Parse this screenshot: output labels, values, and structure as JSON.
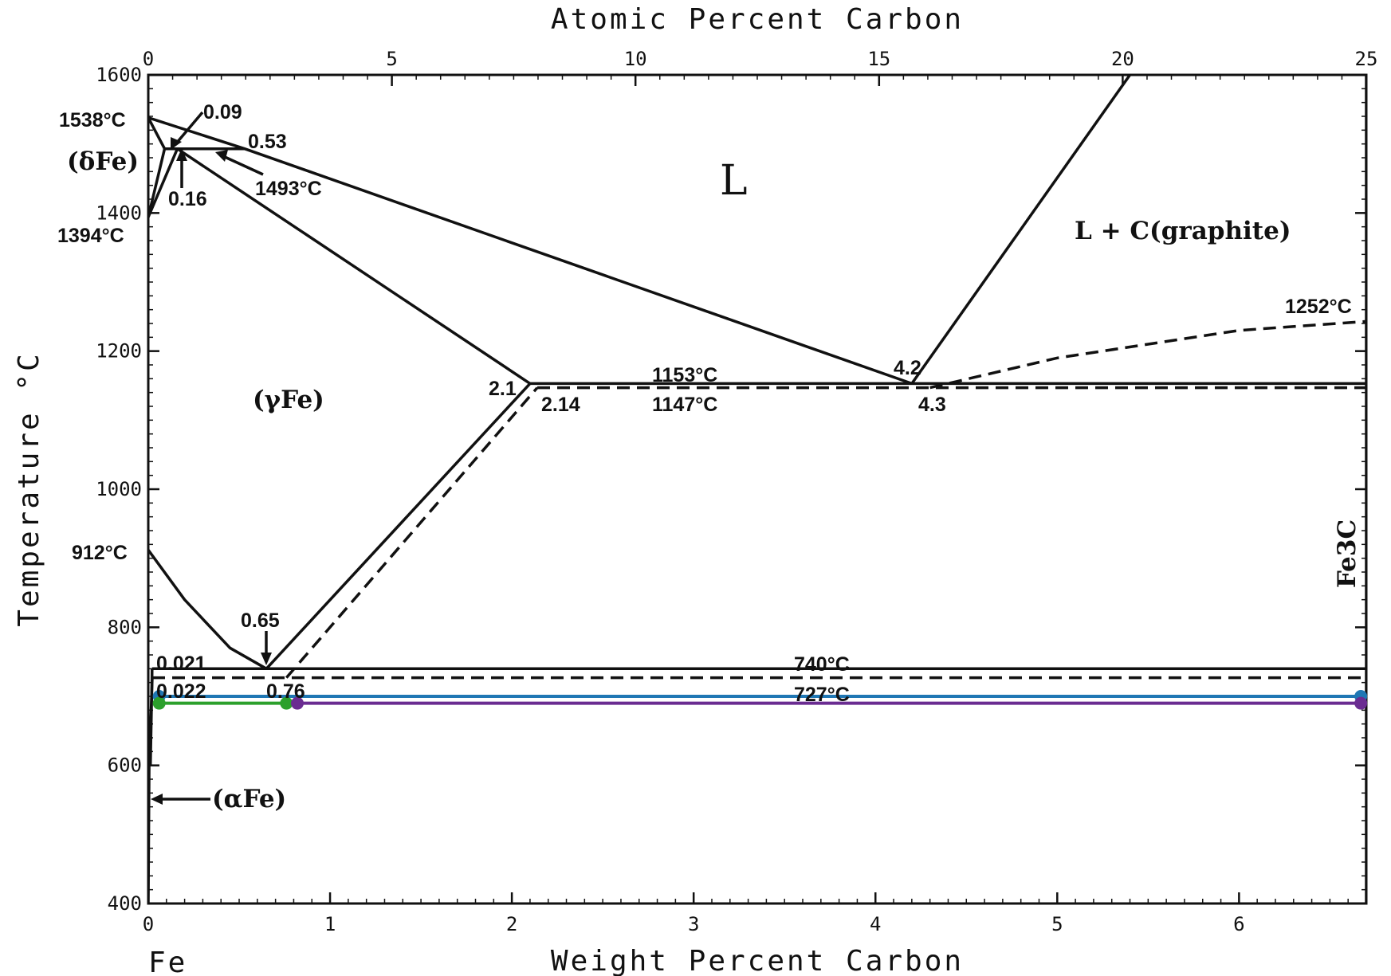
{
  "chart_data": {
    "type": "line",
    "title": "",
    "xlabel": "Weight Percent Carbon",
    "x2label": "Atomic Percent Carbon",
    "ylabel": "Temperature °C",
    "xlim": [
      0,
      6.7
    ],
    "ylim": [
      400,
      1600
    ],
    "x2lim": [
      0,
      25
    ],
    "x_ticks": [
      0,
      1,
      2,
      3,
      4,
      5,
      6
    ],
    "x2_ticks": [
      0,
      5,
      10,
      15,
      20,
      25
    ],
    "y_ticks": [
      400,
      600,
      800,
      1000,
      1200,
      1400,
      1600
    ],
    "fe_label": "Fe",
    "fe3c_label": "Fe3C",
    "regions": {
      "liquid": "L",
      "liquid_graphite": "L + C(graphite)",
      "gamma": "(γFe)",
      "delta": "(δFe)",
      "alpha": "(αFe)"
    },
    "annotations": {
      "t1538": "1538°C",
      "t1394": "1394°C",
      "t912": "912°C",
      "t1493": "1493°C",
      "t1252": "1252°C",
      "t1153": "1153°C",
      "t1147": "1147°C",
      "t740": "740°C",
      "t727": "727°C",
      "c009": "0.09",
      "c053": "0.53",
      "c016": "0.16",
      "c21": "2.1",
      "c214": "2.14",
      "c42": "4.2",
      "c43": "4.3",
      "c065": "0.65",
      "c0021": "0.021",
      "c0022": "0.022",
      "c076": "0.76"
    },
    "series": [
      {
        "line": "delta_liquidus",
        "style": "solid",
        "points": [
          [
            0,
            1538
          ],
          [
            0.53,
            1493
          ],
          [
            4.2,
            1153
          ]
        ]
      },
      {
        "line": "delta_solidus",
        "style": "solid",
        "points": [
          [
            0,
            1538
          ],
          [
            0.09,
            1493
          ]
        ]
      },
      {
        "line": "delta_gamma_upper",
        "style": "solid",
        "points": [
          [
            0,
            1394
          ],
          [
            0.09,
            1493
          ]
        ]
      },
      {
        "line": "delta_gamma_lower",
        "style": "solid",
        "points": [
          [
            0,
            1394
          ],
          [
            0.16,
            1493
          ]
        ]
      },
      {
        "line": "peritectic_1493",
        "style": "solid",
        "points": [
          [
            0.09,
            1493
          ],
          [
            0.53,
            1493
          ]
        ]
      },
      {
        "line": "austenite_solidus",
        "style": "solid",
        "points": [
          [
            0.16,
            1493
          ],
          [
            2.1,
            1153
          ]
        ]
      },
      {
        "line": "graphite_liquidus",
        "style": "solid",
        "points": [
          [
            4.2,
            1153
          ],
          [
            5.4,
            1600
          ]
        ]
      },
      {
        "line": "eutectic_1153",
        "style": "solid",
        "points": [
          [
            2.1,
            1153
          ],
          [
            6.7,
            1153
          ]
        ]
      },
      {
        "line": "eutectic_1147",
        "style": "dashed",
        "points": [
          [
            2.14,
            1147
          ],
          [
            6.7,
            1147
          ]
        ]
      },
      {
        "line": "acm_stable",
        "style": "solid",
        "points": [
          [
            0.65,
            740
          ],
          [
            2.1,
            1153
          ]
        ]
      },
      {
        "line": "acm_metastable",
        "style": "dashed",
        "points": [
          [
            0.76,
            727
          ],
          [
            2.14,
            1147
          ]
        ]
      },
      {
        "line": "a3",
        "style": "solid",
        "points": [
          [
            0,
            912
          ],
          [
            0.2,
            840
          ],
          [
            0.45,
            770
          ],
          [
            0.65,
            740
          ]
        ]
      },
      {
        "line": "eutectoid_740",
        "style": "solid",
        "points": [
          [
            0.021,
            740
          ],
          [
            6.7,
            740
          ]
        ]
      },
      {
        "line": "eutectoid_727",
        "style": "dashed",
        "points": [
          [
            0.022,
            727
          ],
          [
            6.7,
            727
          ]
        ]
      },
      {
        "line": "graphite_cm",
        "style": "dashed",
        "points": [
          [
            4.3,
            1147
          ],
          [
            5.0,
            1190
          ],
          [
            6.0,
            1230
          ],
          [
            6.7,
            1243
          ]
        ]
      },
      {
        "line": "alpha_solvus",
        "style": "solid",
        "points": [
          [
            0.022,
            727
          ],
          [
            0.005,
            600
          ],
          [
            0,
            400
          ]
        ]
      },
      {
        "line": "alpha_solvus_stable",
        "style": "solid",
        "points": [
          [
            0.021,
            740
          ],
          [
            0.02,
            720
          ],
          [
            0.012,
            600
          ]
        ]
      },
      {
        "line": "fe3c",
        "style": "solid",
        "points": [
          [
            6.7,
            400
          ],
          [
            6.7,
            1600
          ]
        ]
      }
    ],
    "tie_lines": [
      {
        "name": "blue",
        "color": "#1f77b4",
        "temperature": 700,
        "x": [
          0.06,
          6.67
        ]
      },
      {
        "name": "green",
        "color": "#2ca02c",
        "temperature": 690,
        "x": [
          0.06,
          0.76
        ]
      },
      {
        "name": "purple",
        "color": "#6a2c91",
        "temperature": 690,
        "x": [
          0.82,
          6.67
        ]
      }
    ]
  }
}
